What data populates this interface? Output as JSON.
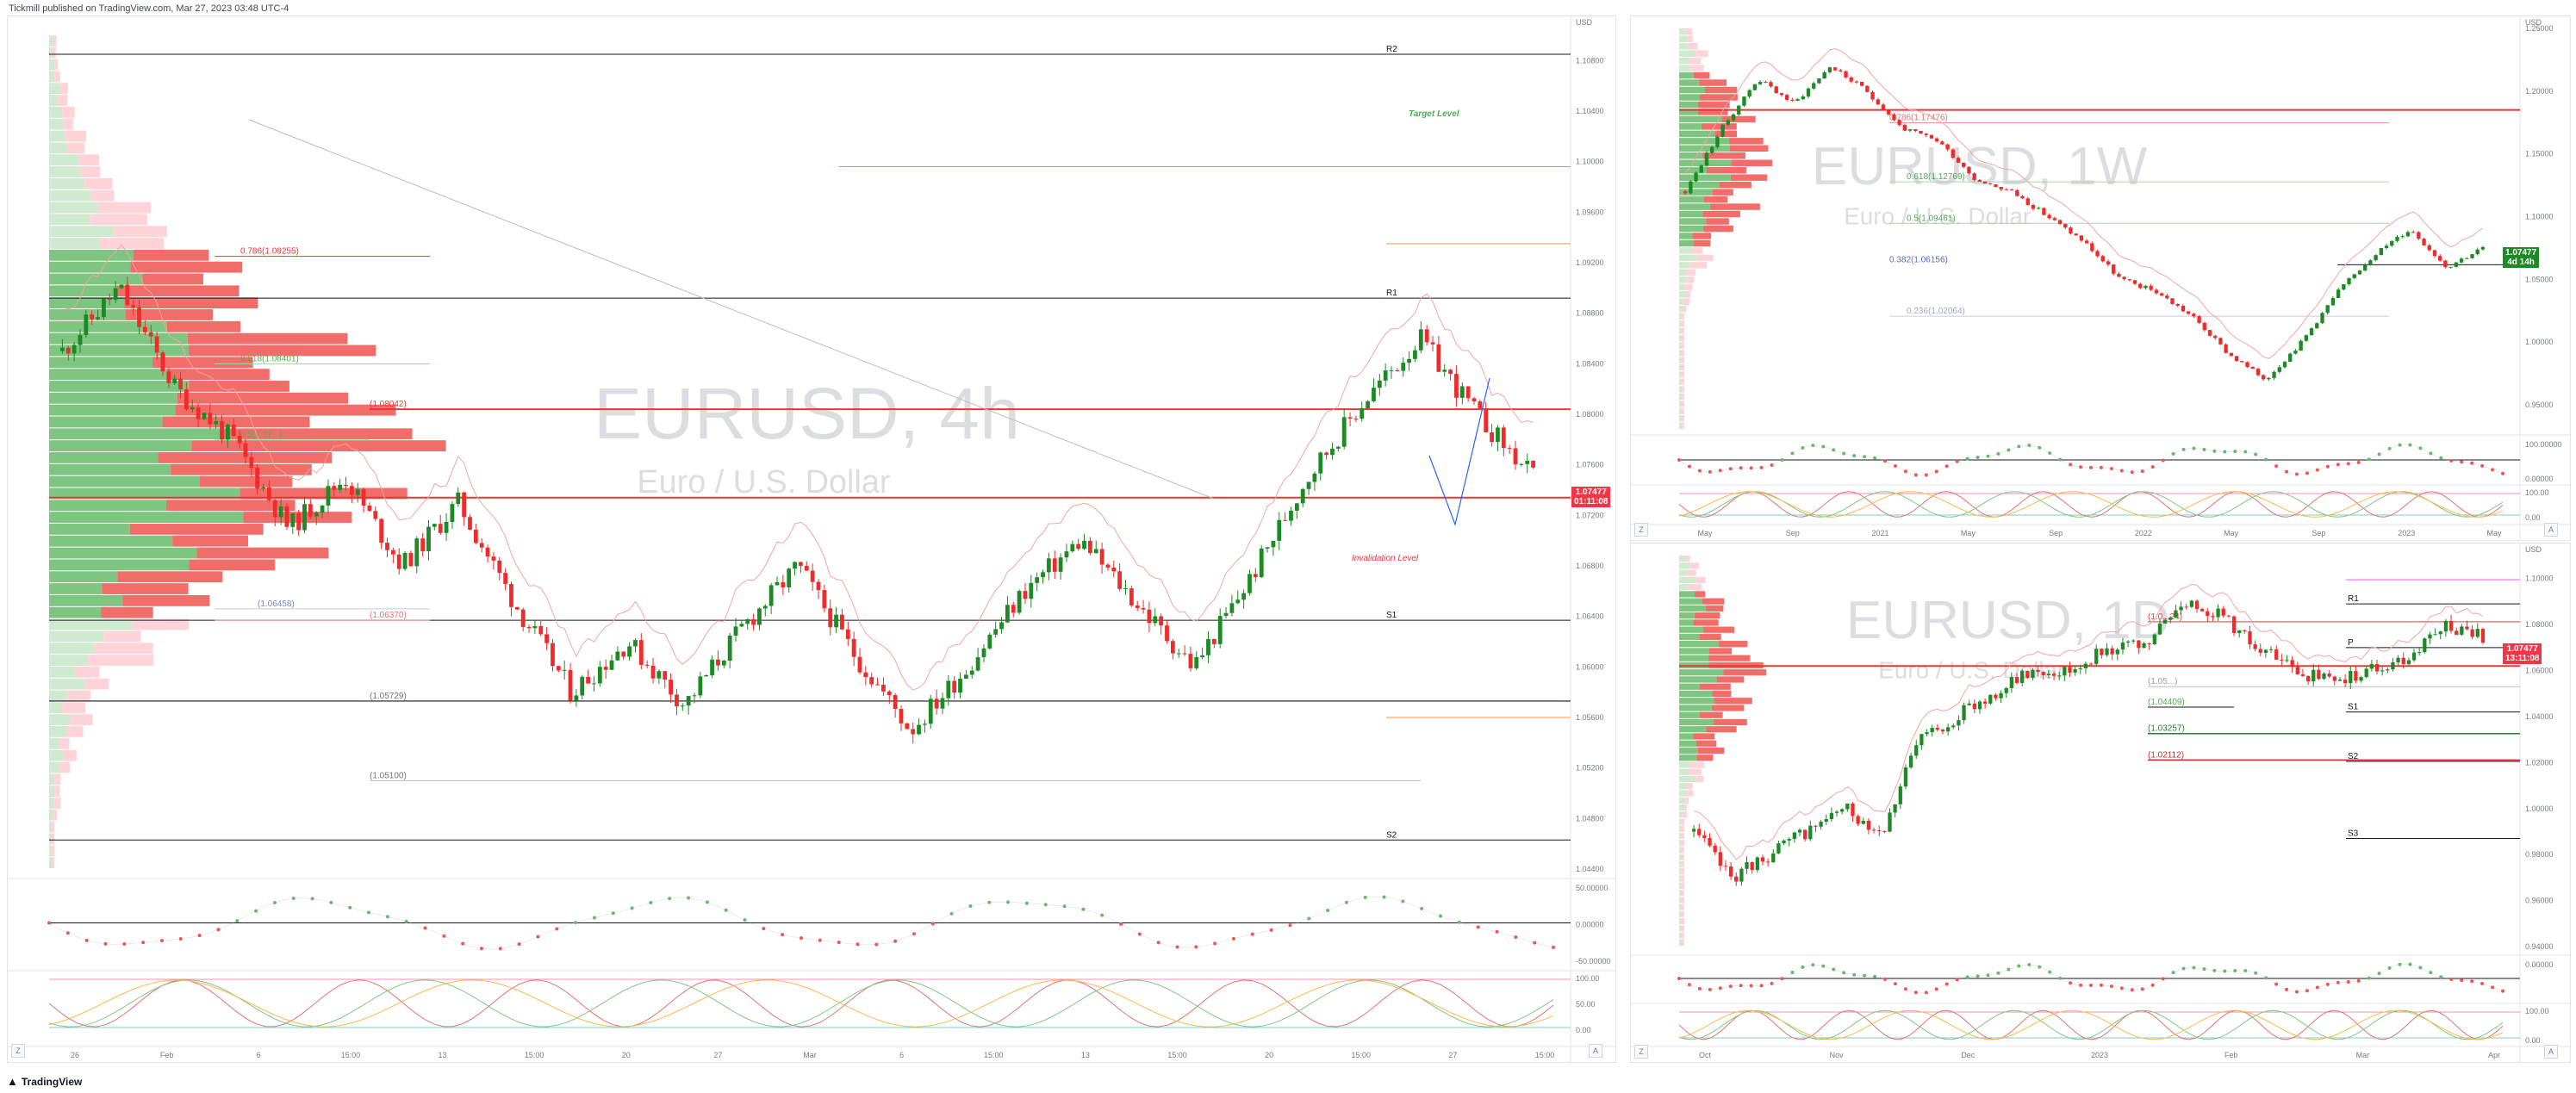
{
  "header": {
    "publisher": "Tickmill published on TradingView.com, Mar 27, 2023 03:48 UTC-4"
  },
  "footer": {
    "brand": "TradingView"
  },
  "colors": {
    "up": "#1e8a26",
    "down": "#ef2b2b",
    "level_red": "#e53935",
    "target": "#4caf50"
  },
  "panels": {
    "left": {
      "symbol": "EURUSD, 4h",
      "description": "Euro / U.S. Dollar",
      "currency": "USD",
      "price_tag": {
        "price": "1.07477",
        "countdown": "01:11:08"
      },
      "levels": {
        "r2": "R2",
        "r1": "R1",
        "s1": "S1",
        "s2": "S2"
      },
      "fib": [
        "0.786(1.09255)",
        "0.618(1.08401)",
        "0.5(1.07...)",
        "(1.08042)",
        "(1.06458)",
        "(1.06370)",
        "(1.05729)",
        "(1.05100)"
      ],
      "annotations": {
        "target": "Target Level",
        "invalidation": "Invalidation Level"
      },
      "price_axis": [
        "1.10800",
        "1.10400",
        "1.10000",
        "1.09600",
        "1.09200",
        "1.08800",
        "1.08400",
        "1.08000",
        "1.07600",
        "1.07200",
        "1.06800",
        "1.06400",
        "1.06000",
        "1.05600",
        "1.05200",
        "1.04800",
        "1.04400"
      ],
      "time_axis": [
        "26",
        "Feb",
        "6",
        "15:00",
        "13",
        "15:00",
        "20",
        "27",
        "Mar",
        "6",
        "15:00",
        "13",
        "15:00",
        "20",
        "15:00",
        "27",
        "15:00"
      ],
      "osc_axis": [
        "50.00000",
        "0.00000",
        "-50.00000"
      ],
      "stoch_axis": [
        "100.00",
        "50.00",
        "0.00"
      ]
    },
    "top_right": {
      "symbol": "EURUSD, 1W",
      "description": "Euro / U.S. Dollar",
      "currency": "USD",
      "price_tag": {
        "price": "1.07477",
        "countdown": "4d 14h"
      },
      "fib": [
        "0.786(1.17476)",
        "0.618(1.12769)",
        "0.5(1.09461)",
        "0.382(1.06156)",
        "0.236(1.02064)"
      ],
      "price_axis": [
        "1.25000",
        "1.20000",
        "1.15000",
        "1.10000",
        "1.05000",
        "1.00000",
        "0.95000"
      ],
      "time_axis": [
        "May",
        "Sep",
        "2021",
        "May",
        "Sep",
        "2022",
        "May",
        "Sep",
        "2023",
        "May"
      ],
      "osc_axis": [
        "100.00000",
        "0.00000"
      ],
      "stoch_axis": [
        "100.00",
        "0.00"
      ]
    },
    "bottom_right": {
      "symbol": "EURUSD, 1D",
      "description": "Euro / U.S. Dollar",
      "currency": "USD",
      "price_tag": {
        "price": "1.07477",
        "countdown": "13:11:08"
      },
      "levels": {
        "r1": "R1",
        "p": "P",
        "s1": "S1",
        "s2": "S2",
        "s3": "S3"
      },
      "fib": [
        "(1.0...24)",
        "(1.05...)",
        "(1.04409)",
        "(1.03257)",
        "(1.02112)"
      ],
      "price_axis": [
        "1.10000",
        "1.08000",
        "1.06000",
        "1.04000",
        "1.02000",
        "1.00000",
        "0.98000",
        "0.96000",
        "0.94000"
      ],
      "time_axis": [
        "Oct",
        "Nov",
        "Dec",
        "2023",
        "Feb",
        "Mar",
        "Apr"
      ],
      "osc_axis": [
        "0.00000"
      ],
      "stoch_axis": [
        "100.00",
        "0.00"
      ]
    }
  },
  "chart_data": [
    {
      "type": "candlestick",
      "title": "EURUSD, 4h",
      "ylim": [
        1.044,
        1.11
      ],
      "series": [
        {
          "name": "EURUSD",
          "approx_close": [
            1.085,
            1.09,
            1.082,
            1.078,
            1.071,
            1.075,
            1.068,
            1.073,
            1.065,
            1.058,
            1.062,
            1.057,
            1.063,
            1.068,
            1.061,
            1.055,
            1.06,
            1.066,
            1.07,
            1.065,
            1.06,
            1.067,
            1.075,
            1.081,
            1.086,
            1.08,
            1.075
          ]
        }
      ],
      "annotations": [
        "Target Level",
        "Invalidation Level"
      ]
    },
    {
      "type": "candlestick",
      "title": "EURUSD, 1W",
      "ylim": [
        0.93,
        1.25
      ],
      "series": [
        {
          "name": "EURUSD",
          "approx_close": [
            1.12,
            1.17,
            1.21,
            1.19,
            1.22,
            1.2,
            1.17,
            1.16,
            1.13,
            1.12,
            1.1,
            1.08,
            1.05,
            1.04,
            1.02,
            0.99,
            0.97,
            1.0,
            1.04,
            1.07,
            1.09,
            1.06,
            1.075
          ]
        }
      ]
    },
    {
      "type": "candlestick",
      "title": "EURUSD, 1D",
      "ylim": [
        0.94,
        1.11
      ],
      "series": [
        {
          "name": "EURUSD",
          "approx_close": [
            0.99,
            0.97,
            0.98,
            0.99,
            1.0,
            0.99,
            1.03,
            1.04,
            1.05,
            1.06,
            1.06,
            1.07,
            1.07,
            1.09,
            1.085,
            1.07,
            1.06,
            1.055,
            1.06,
            1.065,
            1.08,
            1.075
          ]
        }
      ]
    }
  ]
}
